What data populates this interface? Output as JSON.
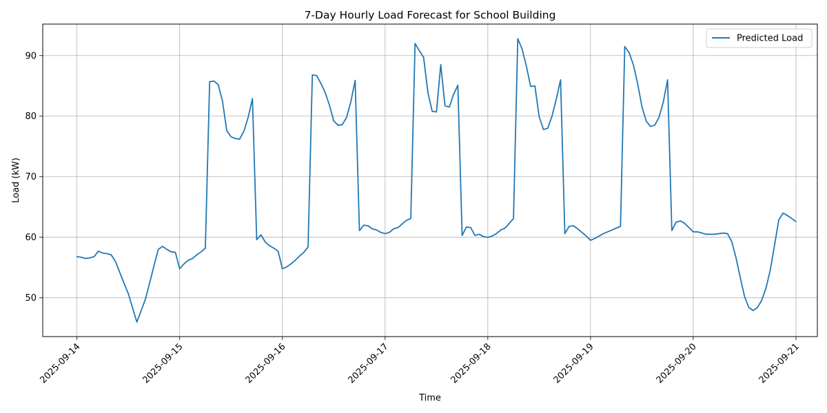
{
  "chart_data": {
    "type": "line",
    "title": "7-Day Hourly Load Forecast for School Building",
    "xlabel": "Time",
    "ylabel": "Load (kW)",
    "xlim": [
      "2025-09-13T16:00",
      "2025-09-21T05:00"
    ],
    "ylim": [
      43.6,
      95.2
    ],
    "grid": true,
    "legend_position": "top-right",
    "x_ticks": [
      "2025-09-14",
      "2025-09-15",
      "2025-09-16",
      "2025-09-17",
      "2025-09-18",
      "2025-09-19",
      "2025-09-20",
      "2025-09-21"
    ],
    "y_ticks": [
      50,
      60,
      70,
      80,
      90
    ],
    "line_color": "#1f77b4",
    "series": [
      {
        "name": "Predicted Load",
        "x_start": "2025-09-14T00:00",
        "interval": "1 hour",
        "values": [
          56.8,
          56.7,
          56.5,
          56.6,
          56.8,
          57.7,
          57.4,
          57.3,
          57.1,
          56.0,
          54.2,
          52.4,
          50.7,
          48.3,
          46.0,
          47.9,
          49.8,
          52.5,
          55.3,
          58.0,
          58.5,
          58.0,
          57.6,
          57.5,
          54.8,
          55.6,
          56.2,
          56.5,
          57.1,
          57.6,
          58.2,
          85.7,
          85.8,
          85.2,
          82.5,
          77.6,
          76.6,
          76.3,
          76.2,
          77.5,
          79.8,
          82.9,
          59.6,
          60.4,
          59.2,
          58.6,
          58.2,
          57.7,
          54.8,
          55.1,
          55.6,
          56.2,
          56.9,
          57.5,
          58.4,
          86.8,
          86.7,
          85.4,
          83.9,
          81.8,
          79.2,
          78.5,
          78.6,
          79.8,
          82.4,
          85.9,
          61.1,
          62.0,
          61.9,
          61.4,
          61.2,
          60.8,
          60.6,
          60.8,
          61.4,
          61.6,
          62.2,
          62.8,
          63.1,
          92.0,
          90.8,
          89.7,
          83.9,
          80.8,
          80.7,
          88.5,
          81.7,
          81.5,
          83.6,
          85.1,
          60.3,
          61.7,
          61.6,
          60.3,
          60.5,
          60.1,
          60.0,
          60.2,
          60.6,
          61.2,
          61.5,
          62.3,
          63.1,
          92.8,
          91.1,
          88.3,
          84.9,
          85.0,
          79.9,
          77.8,
          78.0,
          80.0,
          82.8,
          86.0,
          60.6,
          61.8,
          61.9,
          61.4,
          60.8,
          60.2,
          59.5,
          59.8,
          60.2,
          60.6,
          60.9,
          61.2,
          61.5,
          61.8,
          91.5,
          90.5,
          88.5,
          85.4,
          81.6,
          79.2,
          78.3,
          78.5,
          79.8,
          82.3,
          86.0,
          61.1,
          62.5,
          62.7,
          62.3,
          61.6,
          60.9,
          60.9,
          60.7,
          60.5,
          60.5,
          60.5,
          60.6,
          60.7,
          60.6,
          59.3,
          56.6,
          53.3,
          50.2,
          48.4,
          47.9,
          48.4,
          49.6,
          51.6,
          54.6,
          58.7,
          62.9,
          64.0,
          63.6,
          63.1,
          62.6
        ]
      }
    ]
  }
}
